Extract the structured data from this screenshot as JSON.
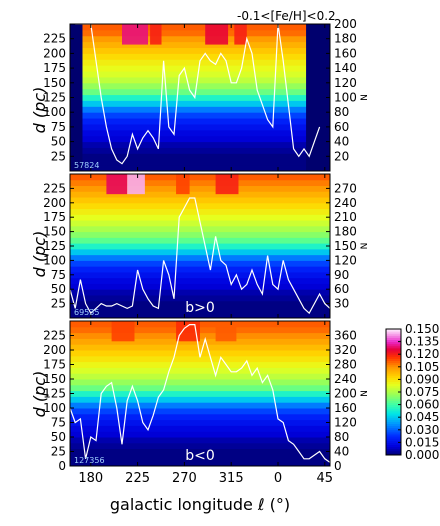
{
  "figure": {
    "title": "-0.1<[Fe/H]<0.2",
    "xlabel": "galactic longitude ℓ (°)",
    "ylabel": "d (pc)",
    "right_label": "N",
    "x_ticks": [
      "180",
      "225",
      "270",
      "315",
      "0",
      "45"
    ]
  },
  "chart_data": [
    {
      "type": "heatmap",
      "panel": "top",
      "label": "",
      "count": "57824",
      "y_ticks": [
        "25",
        "50",
        "75",
        "100",
        "125",
        "150",
        "175",
        "200",
        "225"
      ],
      "ylim": [
        0,
        250
      ],
      "n_ticks": [
        "20",
        "40",
        "60",
        "80",
        "100",
        "120",
        "140",
        "160",
        "180",
        "200"
      ],
      "nlim": [
        0,
        200
      ],
      "x_range_deg": [
        160,
        410
      ],
      "mask_deg": [
        [
          160,
          172
        ],
        [
          387,
          410
        ]
      ],
      "bands": [
        {
          "d": 5,
          "v": 0.002
        },
        {
          "d": 15,
          "v": 0.002
        },
        {
          "d": 25,
          "v": 0.002
        },
        {
          "d": 35,
          "v": 0.004
        },
        {
          "d": 45,
          "v": 0.006
        },
        {
          "d": 55,
          "v": 0.01
        },
        {
          "d": 65,
          "v": 0.012
        },
        {
          "d": 75,
          "v": 0.016
        },
        {
          "d": 85,
          "v": 0.02
        },
        {
          "d": 95,
          "v": 0.026
        },
        {
          "d": 105,
          "v": 0.034
        },
        {
          "d": 115,
          "v": 0.045
        },
        {
          "d": 125,
          "v": 0.055
        },
        {
          "d": 135,
          "v": 0.066
        },
        {
          "d": 145,
          "v": 0.072
        },
        {
          "d": 155,
          "v": 0.078
        },
        {
          "d": 165,
          "v": 0.082
        },
        {
          "d": 175,
          "v": 0.085
        },
        {
          "d": 185,
          "v": 0.088
        },
        {
          "d": 195,
          "v": 0.092
        },
        {
          "d": 205,
          "v": 0.096
        },
        {
          "d": 215,
          "v": 0.1
        },
        {
          "d": 225,
          "v": 0.104
        },
        {
          "d": 235,
          "v": 0.11
        },
        {
          "d": 245,
          "v": 0.112
        }
      ],
      "hotspots_deg": [
        [
          210,
          235,
          0.13
        ],
        [
          237,
          248,
          0.12
        ],
        [
          290,
          312,
          0.125
        ],
        [
          318,
          330,
          0.12
        ]
      ],
      "curve_x": [
        165,
        170,
        175,
        180,
        185,
        190,
        195,
        200,
        205,
        210,
        215,
        220,
        225,
        230,
        235,
        240,
        245,
        250,
        255,
        260,
        265,
        270,
        275,
        280,
        285,
        290,
        295,
        300,
        305,
        310,
        315,
        320,
        325,
        330,
        335,
        340,
        345,
        350,
        355,
        360,
        365,
        370,
        375,
        380,
        385,
        390,
        395,
        400
      ],
      "curve_n": [
        200,
        200,
        200,
        200,
        150,
        100,
        60,
        30,
        15,
        10,
        20,
        50,
        30,
        45,
        55,
        45,
        30,
        150,
        60,
        50,
        130,
        140,
        110,
        100,
        150,
        160,
        150,
        145,
        160,
        150,
        120,
        120,
        140,
        180,
        160,
        110,
        90,
        70,
        60,
        200,
        150,
        90,
        30,
        20,
        30,
        20,
        40,
        60
      ]
    },
    {
      "type": "heatmap",
      "panel": "middle",
      "label": "b>0",
      "count": "69535",
      "y_ticks": [
        "25",
        "50",
        "75",
        "100",
        "125",
        "150",
        "175",
        "200",
        "225"
      ],
      "ylim": [
        0,
        250
      ],
      "n_ticks": [
        "30",
        "60",
        "90",
        "120",
        "150",
        "180",
        "210",
        "240",
        "270"
      ],
      "nlim": [
        0,
        300
      ],
      "x_range_deg": [
        160,
        410
      ],
      "mask_deg": [],
      "bands": [
        {
          "d": 5,
          "v": 0.002
        },
        {
          "d": 15,
          "v": 0.002
        },
        {
          "d": 25,
          "v": 0.002
        },
        {
          "d": 35,
          "v": 0.004
        },
        {
          "d": 45,
          "v": 0.006
        },
        {
          "d": 55,
          "v": 0.01
        },
        {
          "d": 65,
          "v": 0.012
        },
        {
          "d": 75,
          "v": 0.016
        },
        {
          "d": 85,
          "v": 0.02
        },
        {
          "d": 95,
          "v": 0.026
        },
        {
          "d": 105,
          "v": 0.034
        },
        {
          "d": 115,
          "v": 0.045
        },
        {
          "d": 125,
          "v": 0.055
        },
        {
          "d": 135,
          "v": 0.064
        },
        {
          "d": 145,
          "v": 0.07
        },
        {
          "d": 155,
          "v": 0.075
        },
        {
          "d": 165,
          "v": 0.08
        },
        {
          "d": 175,
          "v": 0.084
        },
        {
          "d": 185,
          "v": 0.088
        },
        {
          "d": 195,
          "v": 0.092
        },
        {
          "d": 205,
          "v": 0.096
        },
        {
          "d": 215,
          "v": 0.1
        },
        {
          "d": 225,
          "v": 0.104
        },
        {
          "d": 235,
          "v": 0.108
        },
        {
          "d": 245,
          "v": 0.112
        }
      ],
      "hotspots_deg": [
        [
          195,
          215,
          0.128
        ],
        [
          215,
          232,
          0.145
        ],
        [
          262,
          275,
          0.115
        ],
        [
          300,
          322,
          0.12
        ]
      ],
      "curve_x": [
        160,
        165,
        170,
        175,
        180,
        185,
        190,
        195,
        200,
        205,
        210,
        215,
        220,
        225,
        230,
        235,
        240,
        245,
        250,
        255,
        260,
        265,
        270,
        275,
        280,
        285,
        290,
        295,
        300,
        305,
        310,
        315,
        320,
        325,
        330,
        335,
        340,
        345,
        350,
        355,
        360,
        365,
        370,
        375,
        380,
        385,
        390,
        395,
        400,
        405,
        410
      ],
      "curve_n": [
        60,
        20,
        80,
        30,
        10,
        20,
        30,
        25,
        25,
        30,
        25,
        20,
        25,
        100,
        60,
        40,
        25,
        20,
        120,
        90,
        40,
        210,
        230,
        250,
        250,
        200,
        150,
        100,
        170,
        120,
        110,
        70,
        90,
        60,
        70,
        100,
        70,
        50,
        130,
        70,
        60,
        120,
        80,
        60,
        40,
        20,
        10,
        30,
        50,
        30,
        20
      ]
    },
    {
      "type": "heatmap",
      "panel": "bottom",
      "label": "b<0",
      "count": "127356",
      "y_ticks": [
        "0",
        "25",
        "50",
        "75",
        "100",
        "125",
        "150",
        "175",
        "200",
        "225"
      ],
      "ylim": [
        0,
        250
      ],
      "n_ticks": [
        "0",
        "40",
        "80",
        "120",
        "160",
        "200",
        "240",
        "280",
        "320",
        "360"
      ],
      "nlim": [
        0,
        400
      ],
      "x_range_deg": [
        160,
        410
      ],
      "mask_deg": [],
      "bands": [
        {
          "d": 5,
          "v": 0.002
        },
        {
          "d": 15,
          "v": 0.002
        },
        {
          "d": 25,
          "v": 0.002
        },
        {
          "d": 35,
          "v": 0.004
        },
        {
          "d": 45,
          "v": 0.006
        },
        {
          "d": 55,
          "v": 0.01
        },
        {
          "d": 65,
          "v": 0.012
        },
        {
          "d": 75,
          "v": 0.016
        },
        {
          "d": 85,
          "v": 0.02
        },
        {
          "d": 95,
          "v": 0.026
        },
        {
          "d": 105,
          "v": 0.034
        },
        {
          "d": 115,
          "v": 0.045
        },
        {
          "d": 125,
          "v": 0.055
        },
        {
          "d": 135,
          "v": 0.066
        },
        {
          "d": 145,
          "v": 0.072
        },
        {
          "d": 155,
          "v": 0.078
        },
        {
          "d": 165,
          "v": 0.082
        },
        {
          "d": 175,
          "v": 0.086
        },
        {
          "d": 185,
          "v": 0.09
        },
        {
          "d": 195,
          "v": 0.094
        },
        {
          "d": 205,
          "v": 0.098
        },
        {
          "d": 215,
          "v": 0.102
        },
        {
          "d": 225,
          "v": 0.106
        },
        {
          "d": 235,
          "v": 0.11
        },
        {
          "d": 245,
          "v": 0.112
        }
      ],
      "hotspots_deg": [
        [
          200,
          222,
          0.115
        ],
        [
          262,
          285,
          0.118
        ],
        [
          300,
          320,
          0.112
        ]
      ],
      "curve_x": [
        160,
        165,
        170,
        175,
        180,
        185,
        190,
        195,
        200,
        205,
        210,
        215,
        220,
        225,
        230,
        235,
        240,
        245,
        250,
        255,
        260,
        265,
        270,
        275,
        280,
        285,
        290,
        295,
        300,
        305,
        310,
        315,
        320,
        325,
        330,
        335,
        340,
        345,
        350,
        355,
        360,
        365,
        370,
        375,
        380,
        385,
        390,
        395,
        400,
        405,
        410
      ],
      "curve_n": [
        160,
        120,
        130,
        20,
        80,
        70,
        200,
        220,
        230,
        160,
        60,
        180,
        220,
        180,
        120,
        100,
        140,
        190,
        210,
        260,
        300,
        360,
        380,
        390,
        390,
        300,
        350,
        300,
        250,
        300,
        280,
        260,
        260,
        270,
        290,
        250,
        270,
        230,
        250,
        210,
        130,
        120,
        70,
        60,
        40,
        20,
        20,
        30,
        40,
        20,
        10
      ]
    }
  ],
  "colorbar": {
    "vmin": 0.0,
    "vmax": 0.15,
    "ticks": [
      "0.000",
      "0.015",
      "0.030",
      "0.045",
      "0.060",
      "0.075",
      "0.090",
      "0.105",
      "0.120",
      "0.135",
      "0.150"
    ]
  }
}
